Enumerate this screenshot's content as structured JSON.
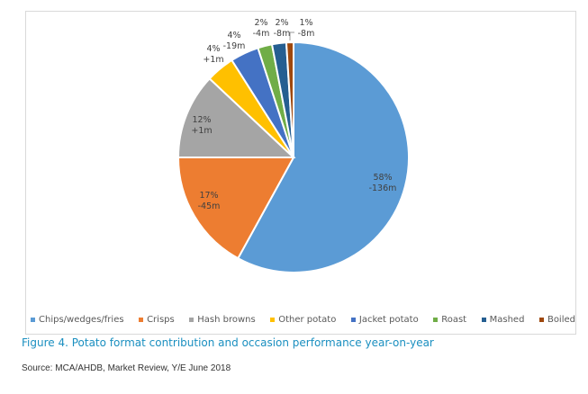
{
  "chart_data": {
    "type": "pie",
    "title": "Figure 4. Potato format contribution and occasion performance year-on-year",
    "source": "Source: MCA/AHDB,  Market Review, Y/E June 2018",
    "slices": [
      {
        "name": "Chips/wedges/fries",
        "value": 58,
        "change": "-136m",
        "pct_label": "58%",
        "color": "#5b9bd5"
      },
      {
        "name": "Crisps",
        "value": 17,
        "change": "-45m",
        "pct_label": "17%",
        "color": "#ed7d31"
      },
      {
        "name": "Hash browns",
        "value": 12,
        "change": "+1m",
        "pct_label": "12%",
        "color": "#a5a5a5"
      },
      {
        "name": "Other potato",
        "value": 4,
        "change": "+1m",
        "pct_label": "4%",
        "color": "#ffc000"
      },
      {
        "name": "Jacket potato",
        "value": 4,
        "change": "-19m",
        "pct_label": "4%",
        "color": "#4472c4"
      },
      {
        "name": "Roast",
        "value": 2,
        "change": "-4m",
        "pct_label": "2%",
        "color": "#70ad47"
      },
      {
        "name": "Mashed",
        "value": 2,
        "change": "-8m",
        "pct_label": "2%",
        "color": "#255e91"
      },
      {
        "name": "Boiled",
        "value": 1,
        "change": "-8m",
        "pct_label": "1%",
        "color": "#9e480e"
      }
    ],
    "legend_position": "bottom"
  }
}
